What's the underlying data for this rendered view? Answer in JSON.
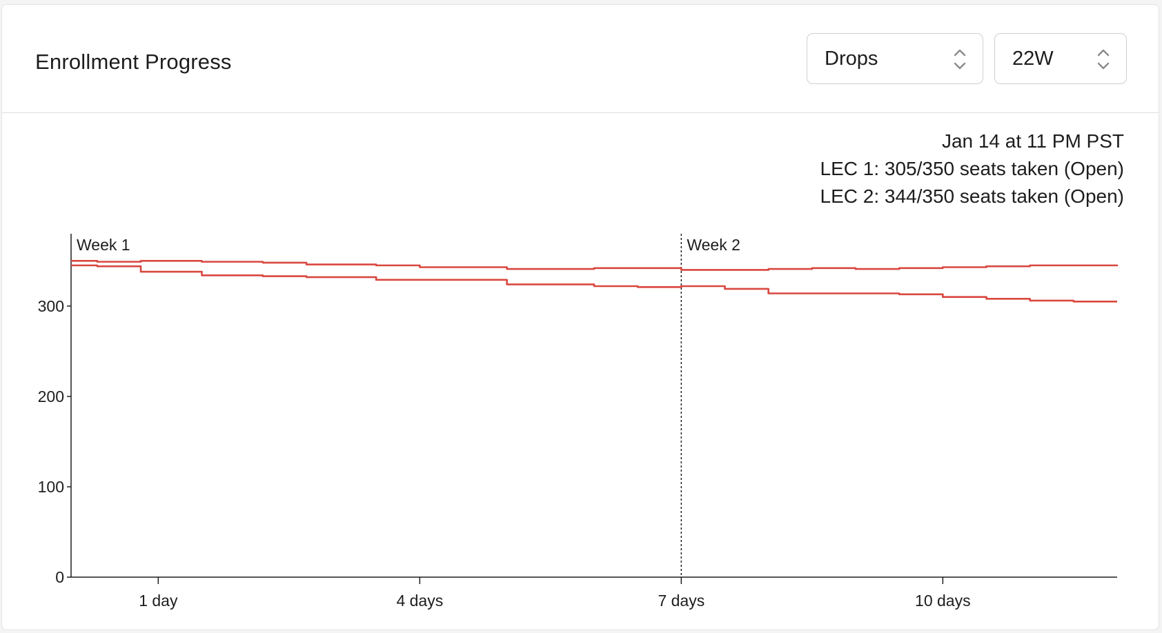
{
  "card": {
    "title": "Enrollment Progress",
    "metric_select": {
      "value": "Drops",
      "icon": "chevron-up-down-icon"
    },
    "term_select": {
      "value": "22W",
      "icon": "chevron-up-down-icon"
    }
  },
  "info": {
    "timestamp": "Jan 14 at 11 PM PST",
    "lines": [
      "LEC 1: 305/350 seats taken (Open)",
      "LEC 2: 344/350 seats taken (Open)"
    ]
  },
  "colors": {
    "series": "#d9473f",
    "axis": "#1d1d1f"
  },
  "chart_data": {
    "type": "line",
    "xlabel": "",
    "ylabel": "",
    "x_unit": "days",
    "xlim": [
      0,
      12
    ],
    "ylim": [
      0,
      380
    ],
    "yticks": [
      0,
      100,
      200,
      300
    ],
    "ytick_labels": [
      "0",
      "100",
      "200",
      "300"
    ],
    "xticks": [
      1,
      4,
      7,
      10
    ],
    "xtick_labels": [
      "1 day",
      "4 days",
      "7 days",
      "10 days"
    ],
    "grid": false,
    "legend": "none",
    "markers": [
      {
        "x": 0,
        "label": "Week 1"
      },
      {
        "x": 7,
        "label": "Week 2"
      }
    ],
    "series": [
      {
        "x": [
          0,
          0.3,
          0.8,
          1.5,
          2.2,
          2.7,
          3.5,
          4.0,
          5.0,
          6.0,
          6.5,
          7.0,
          7.5,
          8.0,
          8.5,
          9.0,
          9.5,
          10.0,
          10.5,
          11.0,
          11.5,
          12.0
        ],
        "values": [
          345,
          344,
          338,
          334,
          333,
          332,
          329,
          329,
          324,
          322,
          321,
          322,
          319,
          314,
          314,
          314,
          313,
          310,
          308,
          306,
          305,
          305
        ]
      },
      {
        "x": [
          0,
          0.3,
          0.8,
          1.5,
          2.2,
          2.7,
          3.5,
          4.0,
          5.0,
          6.0,
          6.5,
          7.0,
          7.5,
          8.0,
          8.5,
          9.0,
          9.5,
          10.0,
          10.5,
          11.0,
          11.5,
          12.0
        ],
        "values": [
          350,
          349,
          350,
          349,
          348,
          346,
          345,
          343,
          341,
          342,
          342,
          340,
          340,
          341,
          342,
          341,
          342,
          343,
          344,
          345,
          345,
          344
        ]
      }
    ]
  }
}
